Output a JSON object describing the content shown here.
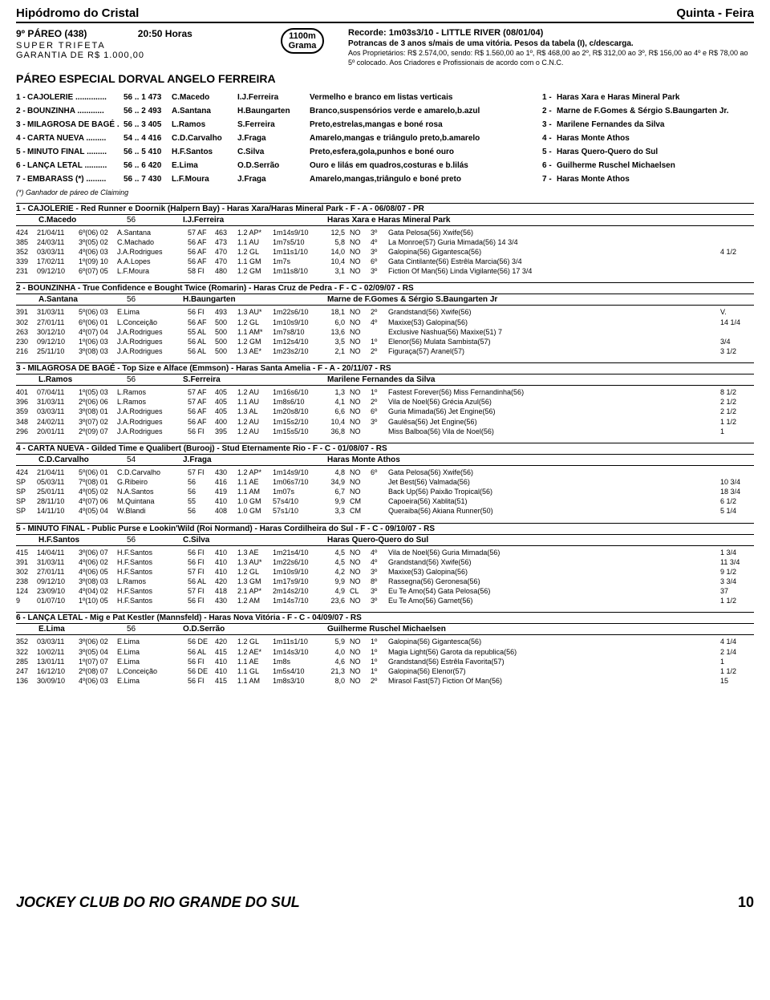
{
  "top": {
    "left": "Hipódromo do Cristal",
    "right": "Quinta - Feira"
  },
  "header": {
    "race": "9º PÁREO  (438)",
    "time": "20:50 Horas",
    "super": "SUPER  TRIFETA",
    "garantia": "GARANTIA  DE  R$  1.000,00",
    "badge_l1": "1100m",
    "badge_l2": "Grama",
    "record": "Recorde: 1m03s3/10 - LITTLE RIVER (08/01/04)",
    "sub": "Potrancas de 3 anos s/mais de uma vitória. Pesos da tabela (I), c/descarga.",
    "text": "Aos Proprietários: R$ 2.574,00, sendo: R$ 1.560,00 ao 1º, R$ 468,00 ao 2º, R$ 312,00 ao 3º, R$ 156,00 ao 4º e R$ 78,00 ao 5º colocado. Aos Criadores e Profissionais de acordo com o C.N.C.",
    "title": "PÁREO ESPECIAL DORVAL ANGELO FERREIRA"
  },
  "entries": [
    {
      "n": "1 -",
      "name": "CAJOLERIE ..............",
      "wt": "56 .. 1  473",
      "j": "C.Macedo",
      "t": "I.J.Ferreira",
      "c": "Vermelho e branco em listas verticais",
      "on": "1 -",
      "o": "Haras Xara e Haras Mineral Park"
    },
    {
      "n": "2 -",
      "name": "BOUNZINHA ............",
      "wt": "56 .. 2  493",
      "j": "A.Santana",
      "t": "H.Baungarten",
      "c": "Branco,suspensórios verde e amarelo,b.azul",
      "on": "2 -",
      "o": "Marne de F.Gomes & Sérgio S.Baungarten Jr."
    },
    {
      "n": "3 -",
      "name": "MILAGROSA DE BAGÉ .",
      "wt": "56 .. 3  405",
      "j": "L.Ramos",
      "t": "S.Ferreira",
      "c": "Preto,estrelas,mangas e boné rosa",
      "on": "3 -",
      "o": "Marilene Fernandes da Silva"
    },
    {
      "n": "4 -",
      "name": "CARTA NUEVA .........",
      "wt": "54 .. 4  416",
      "j": "C.D.Carvalho",
      "t": "J.Fraga",
      "c": "Amarelo,mangas e triângulo preto,b.amarelo",
      "on": "4 -",
      "o": "Haras Monte Athos"
    },
    {
      "n": "5 -",
      "name": "MINUTO FINAL .........",
      "wt": "56 .. 5  410",
      "j": "H.F.Santos",
      "t": "C.Silva",
      "c": "Preto,esfera,gola,punhos e boné ouro",
      "on": "5 -",
      "o": "Haras Quero-Quero do Sul"
    },
    {
      "n": "6 -",
      "name": "LANÇA LETAL ..........",
      "wt": "56 .. 6  420",
      "j": "E.Lima",
      "t": "O.D.Serrão",
      "c": "Ouro e lilás em quadros,costuras e b.lilás",
      "on": "6 -",
      "o": "Guilherme Ruschel Michaelsen"
    },
    {
      "n": "7 -",
      "name": "EMBARASS (*) .........",
      "wt": "56 .. 7  430",
      "j": "L.F.Moura",
      "t": "J.Fraga",
      "c": "Amarelo,mangas,triângulo e boné preto",
      "on": "7 -",
      "o": "Haras Monte Athos"
    }
  ],
  "note": "(*) Ganhador de páreo de Claiming",
  "blocks": [
    {
      "head": "1 - CAJOLERIE -   Red Runner e Doornik (Halpern Bay) - Haras Xara/Haras Mineral Park - F - A - 06/08/07 - PR",
      "sub": {
        "a": "C.Macedo",
        "b": "56",
        "c": "I.J.Ferreira",
        "d": "Haras Xara e Haras Mineral Park"
      },
      "rows": [
        [
          "424",
          "21/04/11",
          "6º(06) 02",
          "A.Santana",
          "57 AF",
          "463",
          "1.2 AP*",
          "1m14s9/10",
          "12,5",
          "NO",
          "3º",
          "Gata Pelosa(56) Xwife(56)",
          ""
        ],
        [
          "385",
          "24/03/11",
          "3º(05) 02",
          "C.Machado",
          "56 AF",
          "473",
          "1.1 AU",
          "1m7s5/10",
          "5,8",
          "NO",
          "4º",
          "La Monroe(57) Guria Mimada(56) 14 3/4",
          ""
        ],
        [
          "352",
          "03/03/11",
          "4º(06) 03",
          "J.A.Rodrigues",
          "56 AF",
          "470",
          "1.2 GL",
          "1m11s1/10",
          "14,0",
          "NO",
          "3º",
          "Galopina(56) Gigantesca(56)",
          "4 1/2"
        ],
        [
          "339",
          "17/02/11",
          "1º(09) 10",
          "A.A.Lopes",
          "56 AF",
          "470",
          "1.1 GM",
          "1m7s",
          "10,4",
          "NO",
          "6º",
          "Gata Cintilante(56) Estrêla Marcia(56) 3/4",
          ""
        ],
        [
          "231",
          "09/12/10",
          "6º(07) 05",
          "L.F.Moura",
          "58 FI",
          "480",
          "1.2 GM",
          "1m11s8/10",
          "3,1",
          "NO",
          "3º",
          "Fiction Of Man(56) Linda Vigilante(56) 17 3/4",
          ""
        ]
      ]
    },
    {
      "head": "2 - BOUNZINHA -  True Confidence e Bought Twice (Romarin) - Haras Cruz de Pedra - F - C - 02/09/07 - RS",
      "sub": {
        "a": "A.Santana",
        "b": "56",
        "c": "H.Baungarten",
        "d": "Marne de F.Gomes & Sérgio S.Baungarten Jr"
      },
      "rows": [
        [
          "391",
          "31/03/11",
          "5º(06) 03",
          "E.Lima",
          "56 FI",
          "493",
          "1.3 AU*",
          "1m22s6/10",
          "18,1",
          "NO",
          "2º",
          "Grandstand(56) Xwife(56)",
          "V."
        ],
        [
          "302",
          "27/01/11",
          "6º(06) 01",
          "L.Conceição",
          "56 AF",
          "500",
          "1.2 GL",
          "1m10s9/10",
          "6,0",
          "NO",
          "4º",
          "Maxixe(53) Galopina(56)",
          "14 1/4"
        ],
        [
          "263",
          "30/12/10",
          "4º(07) 04",
          "J.A.Rodrigues",
          "55 AL",
          "500",
          "1.1 AM*",
          "1m7s8/10",
          "13,6",
          "NO",
          "",
          "Exclusive Nashua(56) Maxixe(51) 7",
          ""
        ],
        [
          "230",
          "09/12/10",
          "1º(06) 03",
          "J.A.Rodrigues",
          "56 AL",
          "500",
          "1.2 GM",
          "1m12s4/10",
          "3,5",
          "NO",
          "1º",
          "Elenor(56) Mulata Sambista(57)",
          "3/4"
        ],
        [
          "216",
          "25/11/10",
          "3º(08) 03",
          "J.A.Rodrigues",
          "56 AL",
          "500",
          "1.3 AE*",
          "1m23s2/10",
          "2,1",
          "NO",
          "2º",
          "Figuraça(57) Aranel(57)",
          "3 1/2"
        ]
      ]
    },
    {
      "head": "3 - MILAGROSA DE BAGÉ - Top Size e Alface (Emmson) - Haras Santa Amelia - F - A - 20/11/07 - RS",
      "sub": {
        "a": "L.Ramos",
        "b": "56",
        "c": "S.Ferreira",
        "d": "Marilene Fernandes da Silva"
      },
      "rows": [
        [
          "401",
          "07/04/11",
          "1º(05) 03",
          "L.Ramos",
          "57 AF",
          "405",
          "1.2 AU",
          "1m16s6/10",
          "1,3",
          "NO",
          "1º",
          "Fastest Forever(56) Miss Fernandinha(56)",
          "8 1/2"
        ],
        [
          "396",
          "31/03/11",
          "2º(06) 06",
          "L.Ramos",
          "57 AF",
          "405",
          "1.1 AU",
          "1m8s6/10",
          "4,1",
          "NO",
          "2º",
          "Vila de Noel(56) Grécia Azul(56)",
          "2 1/2"
        ],
        [
          "359",
          "03/03/11",
          "3º(08) 01",
          "J.A.Rodrigues",
          "56 AF",
          "405",
          "1.3 AL",
          "1m20s8/10",
          "6,6",
          "NO",
          "6º",
          "Guria Mimada(56) Jet Engine(56)",
          "2 1/2"
        ],
        [
          "348",
          "24/02/11",
          "3º(07) 02",
          "J.A.Rodrigues",
          "56 AF",
          "400",
          "1.2 AU",
          "1m15s2/10",
          "10,4",
          "NO",
          "3º",
          "Gaulêsa(56) Jet Engine(56)",
          "1 1/2"
        ],
        [
          "296",
          "20/01/11",
          "2º(09) 07",
          "J.A.Rodrigues",
          "56 FI",
          "395",
          "1.2 AU",
          "1m15s5/10",
          "36,8",
          "NO",
          "",
          "Miss Balboa(56) Vila de Noel(56)",
          "1"
        ]
      ]
    },
    {
      "head": "4 - CARTA NUEVA -  Gilded Time e Qualibert (Burooj) - Stud Eternamente Rio - F - C - 01/08/07 - RS",
      "sub": {
        "a": "C.D.Carvalho",
        "b": "54",
        "c": "J.Fraga",
        "d": "Haras Monte Athos"
      },
      "rows": [
        [
          "424",
          "21/04/11",
          "5º(06) 01",
          "C.D.Carvalho",
          "57 FI",
          "430",
          "1.2 AP*",
          "1m14s9/10",
          "4,8",
          "NO",
          "6º",
          "Gata Pelosa(56) Xwife(56)",
          ""
        ],
        [
          "SP",
          "05/03/11",
          "7º(08) 01",
          "G.Ribeiro",
          "56",
          "416",
          "1.1 AE",
          "1m06s7/10",
          "34,9",
          "NO",
          "",
          "Jet Best(56) Valmada(56)",
          "10 3/4"
        ],
        [
          "SP",
          "25/01/11",
          "4º(05) 02",
          "N.A.Santos",
          "56",
          "419",
          "1.1 AM",
          "1m07s",
          "6,7",
          "NO",
          "",
          "Back Up(56) Paixão Tropical(56)",
          "18 3/4"
        ],
        [
          "SP",
          "28/11/10",
          "4º(07) 06",
          "M.Quintana",
          "55",
          "410",
          "1.0 GM",
          "57s4/10",
          "9,9",
          "CM",
          "",
          "Capoeira(56) Xablita(51)",
          "6 1/2"
        ],
        [
          "SP",
          "14/11/10",
          "4º(05) 04",
          "W.Blandi",
          "56",
          "408",
          "1.0 GM",
          "57s1/10",
          "3,3",
          "CM",
          "",
          "Queraiba(56) Akiana Runner(50)",
          "5 1/4"
        ]
      ]
    },
    {
      "head": "5 - MINUTO FINAL -  Public Purse e Lookin'Wild (Roi Normand) - Haras Cordilheira do Sul - F - C - 09/10/07 - RS",
      "sub": {
        "a": "H.F.Santos",
        "b": "56",
        "c": "C.Silva",
        "d": "Haras Quero-Quero do Sul"
      },
      "rows": [
        [
          "415",
          "14/04/11",
          "3º(06) 07",
          "H.F.Santos",
          "56 FI",
          "410",
          "1.3 AE",
          "1m21s4/10",
          "4,5",
          "NO",
          "4º",
          "Vila de Noel(56) Guria Mimada(56)",
          "1 3/4"
        ],
        [
          "391",
          "31/03/11",
          "4º(06) 02",
          "H.F.Santos",
          "56 FI",
          "410",
          "1.3 AU*",
          "1m22s6/10",
          "4,5",
          "NO",
          "4º",
          "Grandstand(56)  Xwife(56)",
          "11 3/4"
        ],
        [
          "302",
          "27/01/11",
          "4º(06) 05",
          "H.F.Santos",
          "57 FI",
          "410",
          "1.2 GL",
          "1m10s9/10",
          "4,2",
          "NO",
          "3º",
          "Maxixe(53) Galopina(56)",
          "9 1/2"
        ],
        [
          "238",
          "09/12/10",
          "3º(08) 03",
          "L.Ramos",
          "56 AL",
          "420",
          "1.3 GM",
          "1m17s9/10",
          "9,9",
          "NO",
          "8º",
          "Rassegna(56) Geronesa(56)",
          "3 3/4"
        ],
        [
          "124",
          "23/09/10",
          "4º(04) 02",
          "H.F.Santos",
          "57 FI",
          "418",
          "2.1 AP*",
          "2m14s2/10",
          "4,9",
          "CL",
          "3º",
          "Eu Te Amo(54) Gata Pelosa(56)",
          "37"
        ],
        [
          "9",
          "01/07/10",
          "1º(10) 05",
          "H.F.Santos",
          "56 FI",
          "430",
          "1.2 AM",
          "1m14s7/10",
          "23,6",
          "NO",
          "3º",
          "Eu Te Amo(56) Garnet(56)",
          "1 1/2"
        ]
      ]
    },
    {
      "head": "6 - LANÇA LETAL - Mig e Pat Kestler (Mannsfeld) - Haras Nova Vitória - F - C - 04/09/07 - RS",
      "sub": {
        "a": "E.Lima",
        "b": "56",
        "c": "O.D.Serrão",
        "d": "Guilherme Ruschel Michaelsen"
      },
      "rows": [
        [
          "352",
          "03/03/11",
          "3º(06) 02",
          "E.Lima",
          "56 DE",
          "420",
          "1.2 GL",
          "1m11s1/10",
          "5,9",
          "NO",
          "1º",
          "Galopina(56) Gigantesca(56)",
          "4 1/4"
        ],
        [
          "322",
          "10/02/11",
          "3º(05) 04",
          "E.Lima",
          "56 AL",
          "415",
          "1.2 AE*",
          "1m14s3/10",
          "4,0",
          "NO",
          "1º",
          "Magia Light(56) Garota da republica(56)",
          "2 1/4"
        ],
        [
          "285",
          "13/01/11",
          "1º(07) 07",
          "E.Lima",
          "56 FI",
          "410",
          "1.1 AE",
          "1m8s",
          "4,6",
          "NO",
          "1º",
          "Grandstand(56) Estrêla Favorita(57)",
          "1"
        ],
        [
          "247",
          "16/12/10",
          "2º(08) 07",
          "L.Conceição",
          "56 DE",
          "410",
          "1.1 GL",
          "1m5s4/10",
          "21,3",
          "NO",
          "1º",
          "Galopina(56) Elenor(57)",
          "1 1/2"
        ],
        [
          "136",
          "30/09/10",
          "4º(06) 03",
          "E.Lima",
          "56 FI",
          "415",
          "1.1 AM",
          "1m8s3/10",
          "8,0",
          "NO",
          "2º",
          "Mirasol Fast(57) Fiction Of Man(56)",
          "15"
        ]
      ]
    }
  ],
  "footer": {
    "club": "JOCKEY CLUB DO RIO GRANDE DO SUL",
    "page": "10"
  }
}
